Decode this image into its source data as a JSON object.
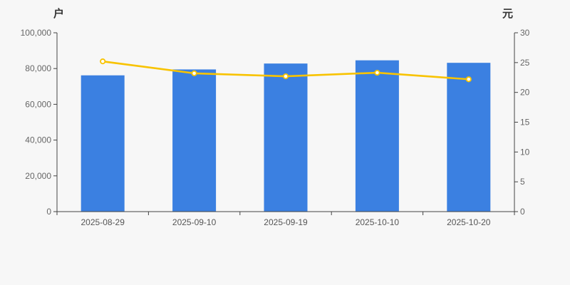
{
  "chart_data": {
    "type": "bar",
    "subtype": "dual-axis-bar-line-combo",
    "title": "",
    "categories": [
      "2025-08-29",
      "2025-09-10",
      "2025-09-19",
      "2025-10-10",
      "2025-10-20"
    ],
    "series": [
      {
        "type": "bar",
        "axis": "left",
        "color": "#3b80e1",
        "values": [
          76200,
          79500,
          82800,
          84600,
          83200
        ]
      },
      {
        "type": "line",
        "axis": "right",
        "color": "#f8c300",
        "marker_fill": "#ffffff",
        "values": [
          25.2,
          23.2,
          22.7,
          23.3,
          22.2
        ]
      }
    ],
    "left_axis": {
      "title": "户",
      "min": 0,
      "max": 100000,
      "tick_values": [
        0,
        20000,
        40000,
        60000,
        80000,
        100000
      ],
      "tick_labels": [
        "0",
        "20,000",
        "40,000",
        "60,000",
        "80,000",
        "100,000"
      ]
    },
    "right_axis": {
      "title": "元",
      "min": 0,
      "max": 30,
      "tick_values": [
        0,
        5,
        10,
        15,
        20,
        25,
        30
      ],
      "tick_labels": [
        "0",
        "5",
        "10",
        "15",
        "20",
        "25",
        "30"
      ]
    },
    "grid": false,
    "legend": "none",
    "background": "#f7f7f7",
    "axis_color": "#444444",
    "tick_text_color": "#666666",
    "date_label_color": "#555555"
  }
}
